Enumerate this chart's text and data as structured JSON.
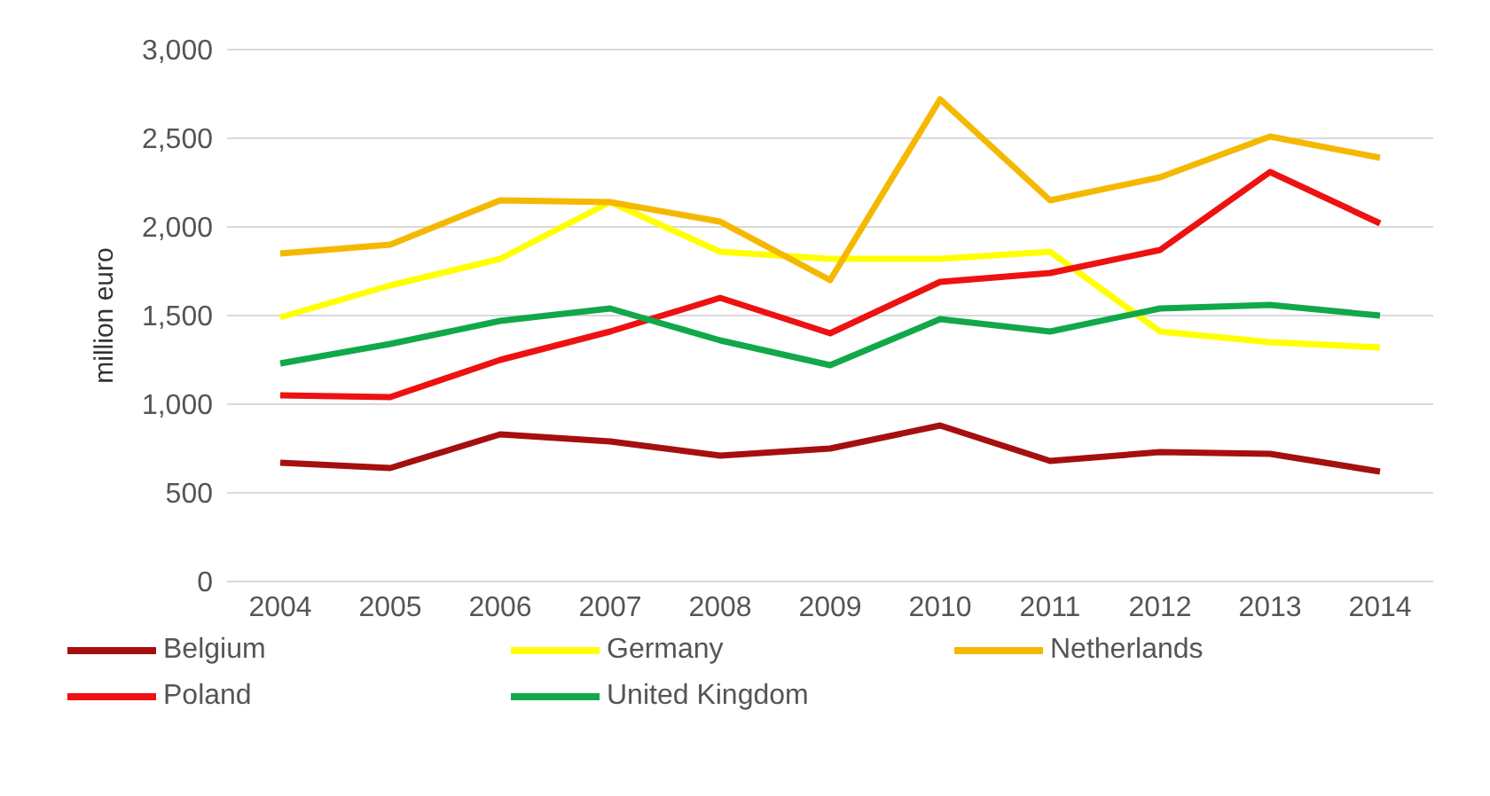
{
  "chart_data": {
    "type": "line",
    "ylabel": "million euro",
    "categories": [
      "2004",
      "2005",
      "2006",
      "2007",
      "2008",
      "2009",
      "2010",
      "2011",
      "2012",
      "2013",
      "2014"
    ],
    "series": [
      {
        "name": "Belgium",
        "color": "#a50f0f",
        "values": [
          670,
          640,
          830,
          790,
          710,
          750,
          880,
          680,
          730,
          720,
          620
        ]
      },
      {
        "name": "Germany",
        "color": "#ffff00",
        "values": [
          1490,
          1670,
          1820,
          2140,
          1860,
          1820,
          1820,
          1860,
          1410,
          1350,
          1320
        ]
      },
      {
        "name": "Netherlands",
        "color": "#f5b800",
        "values": [
          1850,
          1900,
          2150,
          2140,
          2030,
          1700,
          2720,
          2150,
          2280,
          2510,
          2390
        ]
      },
      {
        "name": "Poland",
        "color": "#ee1111",
        "values": [
          1050,
          1040,
          1250,
          1410,
          1600,
          1400,
          1690,
          1740,
          1870,
          2310,
          2020
        ]
      },
      {
        "name": "United Kingdom",
        "color": "#11a84a",
        "values": [
          1230,
          1340,
          1470,
          1540,
          1360,
          1220,
          1480,
          1410,
          1540,
          1560,
          1500
        ]
      }
    ],
    "ylim": [
      0,
      3000
    ],
    "yticks": [
      0,
      500,
      {
        "value": 1000,
        "label": "1,000"
      },
      {
        "value": 1500,
        "label": "1,500"
      },
      {
        "value": 2000,
        "label": "2,000"
      },
      {
        "value": 2500,
        "label": "2,500"
      },
      {
        "value": 3000,
        "label": "3,000"
      }
    ],
    "grid": "y",
    "legend": "bottom",
    "marker": "none",
    "line_style": "solid"
  }
}
